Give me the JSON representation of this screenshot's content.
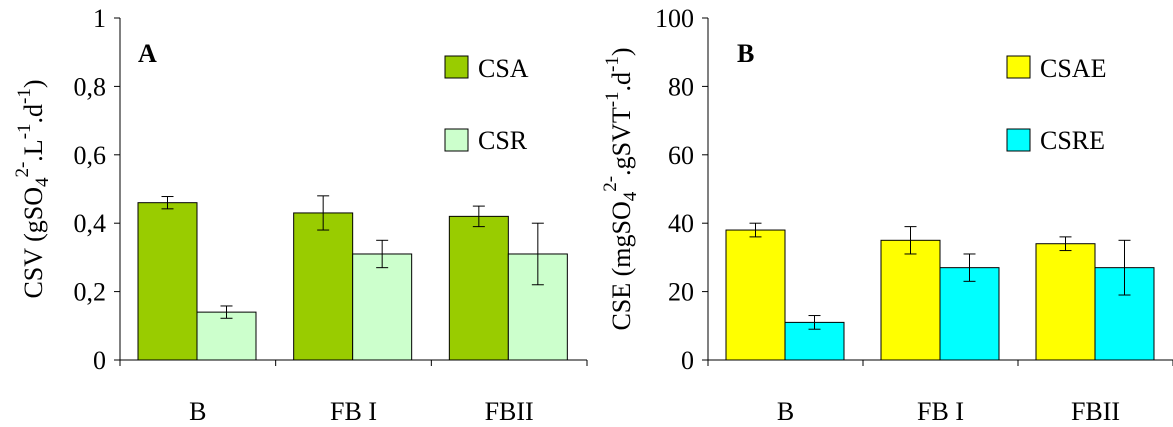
{
  "chart_data": [
    {
      "type": "bar",
      "panel_label": "A",
      "ylabel": {
        "main": "CSV (gSO",
        "sub": "4",
        "sup": "2-",
        "rest1": ".L",
        "sup2": "-1",
        "rest2": ".d",
        "sup3": "-1",
        "close": ")"
      },
      "ylim": [
        0,
        1
      ],
      "yticks": [
        "0",
        "0,2",
        "0,4",
        "0,6",
        "0,8",
        "1"
      ],
      "ytick_values": [
        0,
        0.2,
        0.4,
        0.6,
        0.8,
        1
      ],
      "categories": [
        "B",
        "FB I",
        "FBII"
      ],
      "legend_position": "top-right",
      "series": [
        {
          "name": "CSA",
          "color": "#99cc00",
          "values": [
            0.46,
            0.43,
            0.42
          ],
          "errors": [
            0.018,
            0.05,
            0.03
          ]
        },
        {
          "name": "CSR",
          "color": "#ccffcc",
          "values": [
            0.14,
            0.31,
            0.31
          ],
          "errors": [
            0.018,
            0.04,
            0.09
          ]
        }
      ]
    },
    {
      "type": "bar",
      "panel_label": "B",
      "ylabel": {
        "main": "CSE (mgSO",
        "sub": "4",
        "sup": "2-",
        "rest1": ".gSVT",
        "sup2": "-1",
        "rest2": ".d",
        "sup3": "-1",
        "close": ")"
      },
      "ylim": [
        0,
        100
      ],
      "yticks": [
        "0",
        "20",
        "40",
        "60",
        "80",
        "100"
      ],
      "ytick_values": [
        0,
        20,
        40,
        60,
        80,
        100
      ],
      "categories": [
        "B",
        "FB I",
        "FBII"
      ],
      "legend_position": "top-right",
      "series": [
        {
          "name": "CSAE",
          "color": "#ffff00",
          "values": [
            38,
            35,
            34
          ],
          "errors": [
            2,
            4,
            2
          ]
        },
        {
          "name": "CSRE",
          "color": "#00ffff",
          "values": [
            11,
            27,
            27
          ],
          "errors": [
            2,
            4,
            8
          ]
        }
      ]
    }
  ]
}
